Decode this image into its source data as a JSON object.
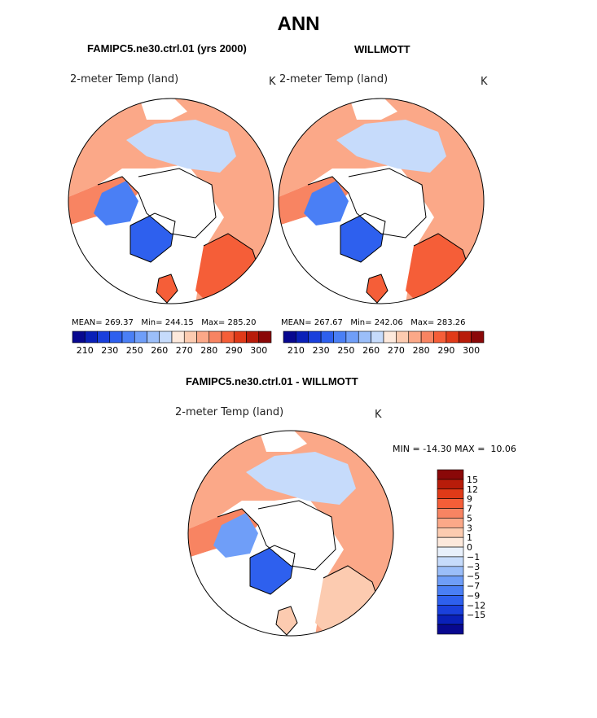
{
  "figure": {
    "title": "ANN",
    "panel_left_title": "FAMIPC5.ne30.ctrl.01 (yrs 2000)",
    "panel_right_title": "WILLMOTT",
    "panel_diff_title": "FAMIPC5.ne30.ctrl.01 - WILLMOTT"
  },
  "chart_data": [
    {
      "type": "heatmap",
      "projection": "north polar stereographic",
      "title": "FAMIPC5.ne30.ctrl.01 (yrs 2000)",
      "variable": "2-meter Temp (land)",
      "units": "K",
      "mean_label": "MEAN=",
      "mean": "269.37",
      "min_label": "Min=",
      "min": "244.15",
      "max_label": "Max=",
      "max": "285.20",
      "colorbar_ticks": [
        "210",
        "230",
        "250",
        "260",
        "270",
        "280",
        "290",
        "300"
      ],
      "colors": [
        "#08088f",
        "#0a20b8",
        "#1a40dc",
        "#2e60ee",
        "#4a7ff5",
        "#6f9ef8",
        "#9bbef9",
        "#c6dbfb",
        "#fde9dc",
        "#fccbb0",
        "#fba888",
        "#f88462",
        "#f55e38",
        "#e03a18",
        "#b81c0a",
        "#8a0808"
      ]
    },
    {
      "type": "heatmap",
      "projection": "north polar stereographic",
      "title": "WILLMOTT",
      "variable": "2-meter Temp (land)",
      "units": "K",
      "mean_label": "MEAN=",
      "mean": "267.67",
      "min_label": "Min=",
      "min": "242.06",
      "max_label": "Max=",
      "max": "283.26",
      "colorbar_ticks": [
        "210",
        "230",
        "250",
        "260",
        "270",
        "280",
        "290",
        "300"
      ],
      "colors": [
        "#08088f",
        "#0a20b8",
        "#1a40dc",
        "#2e60ee",
        "#4a7ff5",
        "#6f9ef8",
        "#9bbef9",
        "#c6dbfb",
        "#fde9dc",
        "#fccbb0",
        "#fba888",
        "#f88462",
        "#f55e38",
        "#e03a18",
        "#b81c0a",
        "#8a0808"
      ]
    },
    {
      "type": "heatmap",
      "projection": "north polar stereographic",
      "title": "FAMIPC5.ne30.ctrl.01 - WILLMOTT",
      "variable": "2-meter Temp (land)",
      "units": "K",
      "min_label": "MIN =",
      "min": "-14.30",
      "max_label": "MAX =",
      "max": "10.06",
      "colorbar_labels": [
        "15",
        "12",
        "9",
        "7",
        "5",
        "3",
        "1",
        "0",
        "−1",
        "−3",
        "−5",
        "−7",
        "−9",
        "−12",
        "−15"
      ],
      "colors": [
        "#8a0808",
        "#b81c0a",
        "#e03a18",
        "#f55e38",
        "#f88462",
        "#fba888",
        "#fccbb0",
        "#fde9dc",
        "#e8f0fb",
        "#c6dbfb",
        "#9bbef9",
        "#6f9ef8",
        "#4a7ff5",
        "#2e60ee",
        "#1a40dc",
        "#0a20b8",
        "#08088f"
      ]
    }
  ]
}
